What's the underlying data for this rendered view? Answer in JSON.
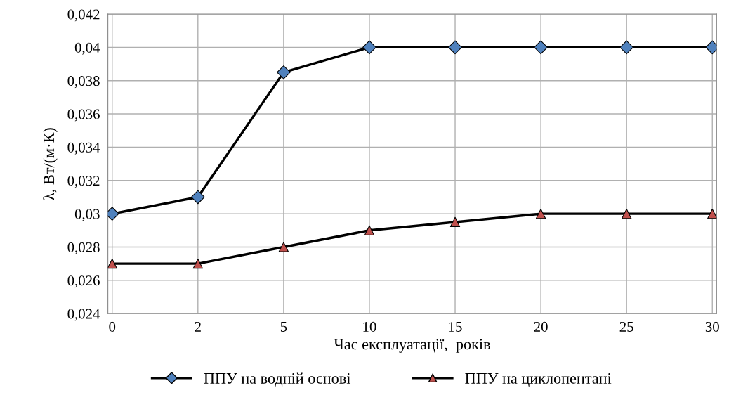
{
  "chart_data": {
    "type": "line",
    "xlabel": "Час експлуатації,  років",
    "ylabel": "λ, Вт/(м·К)",
    "categories": [
      "0",
      "2",
      "5",
      "10",
      "15",
      "20",
      "25",
      "30"
    ],
    "series": [
      {
        "name": "ППУ на водній основі",
        "color": "#000000",
        "marker": "diamond",
        "colors": [
          "#4f81bd",
          "#4f81bd",
          "#4f81bd",
          "#4f81bd",
          "#4f81bd",
          "#4f81bd",
          "#4f81bd",
          "#4f81bd"
        ],
        "values": [
          0.03,
          0.031,
          0.0385,
          0.04,
          0.04,
          0.04,
          0.04,
          0.04
        ]
      },
      {
        "name": "ППУ на циклопентані",
        "color": "#000000",
        "marker": "triangle",
        "colors": [
          "#c0504d",
          "#c0504d",
          "#c0504d",
          "#c0504d",
          "#c0504d",
          "#c0504d",
          "#c0504d",
          "#c0504d"
        ],
        "values": [
          0.027,
          0.027,
          0.028,
          0.029,
          0.0295,
          0.03,
          0.03,
          0.03
        ]
      }
    ],
    "ylim": [
      0.024,
      0.042
    ],
    "yticks": [
      {
        "value": 0.024,
        "label": "0,024"
      },
      {
        "value": 0.026,
        "label": "0,026"
      },
      {
        "value": 0.028,
        "label": "0,028"
      },
      {
        "value": 0.03,
        "label": "0,03"
      },
      {
        "value": 0.032,
        "label": "0,032"
      },
      {
        "value": 0.034,
        "label": "0,034"
      },
      {
        "value": 0.036,
        "label": "0,036"
      },
      {
        "value": 0.038,
        "label": "0,038"
      },
      {
        "value": 0.04,
        "label": "0,04"
      },
      {
        "value": 0.042,
        "label": "0,042"
      }
    ],
    "grid": true,
    "legend": "bottom",
    "line_style": "solid"
  }
}
